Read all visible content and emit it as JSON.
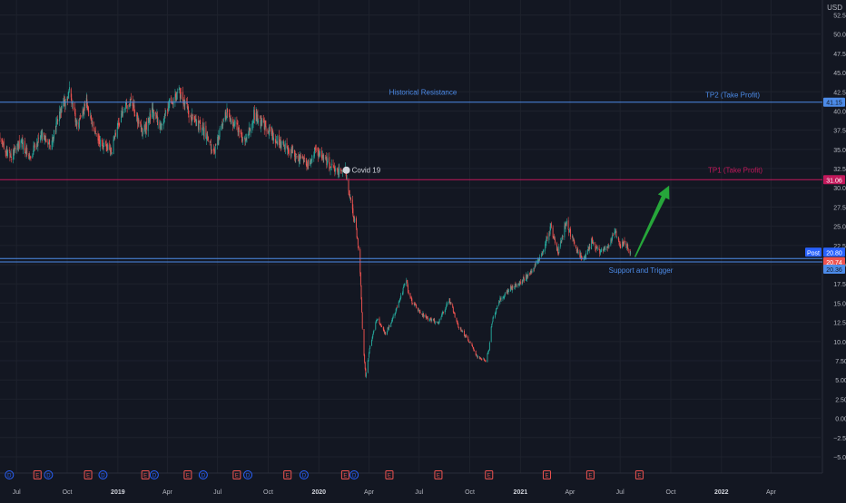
{
  "chart": {
    "currency": "USD",
    "colors": {
      "background": "#131722",
      "grid": "#1e222d",
      "up": "#26a69a",
      "down": "#ef5350",
      "text": "#b2b5be",
      "resistance_line": "#4c8be8",
      "tp1_line": "#c2185b",
      "arrow": "#26a63a",
      "axis_line": "#2a2e39"
    }
  },
  "chart_data": {
    "type": "candlestick",
    "title": "",
    "xlabel": "",
    "ylabel": "",
    "currency": "USD",
    "ylim": [
      -5,
      55
    ],
    "y_ticks": [
      -5,
      -2.5,
      0,
      2.5,
      5,
      7.5,
      10,
      12.5,
      15,
      17.5,
      20,
      22.5,
      25,
      27.5,
      30,
      32.5,
      35,
      37.5,
      40,
      42.5,
      45,
      47.5,
      50,
      52.5
    ],
    "y_tick_labels": [
      "−5.00",
      "−2.50",
      "0.00",
      "2.50",
      "5.00",
      "7.50",
      "10.00",
      "12.50",
      "15.00",
      "17.50",
      "20.00",
      "22.50",
      "25.00",
      "27.50",
      "30.00",
      "32.50",
      "35.00",
      "37.50",
      "40.00",
      "42.50",
      "45.00",
      "47.50",
      "50.00",
      "52.50"
    ],
    "x_range": [
      "2018-06-01",
      "2022-06-30"
    ],
    "x_ticks": [
      {
        "label": "Jul",
        "date": "2018-07-01"
      },
      {
        "label": "Oct",
        "date": "2018-10-01"
      },
      {
        "label": "2019",
        "date": "2019-01-01",
        "bold": true
      },
      {
        "label": "Apr",
        "date": "2019-04-01"
      },
      {
        "label": "Jul",
        "date": "2019-07-01"
      },
      {
        "label": "Oct",
        "date": "2019-10-01"
      },
      {
        "label": "2020",
        "date": "2020-01-01",
        "bold": true
      },
      {
        "label": "Apr",
        "date": "2020-04-01"
      },
      {
        "label": "Jul",
        "date": "2020-07-01"
      },
      {
        "label": "Oct",
        "date": "2020-10-01"
      },
      {
        "label": "2021",
        "date": "2021-01-01",
        "bold": true
      },
      {
        "label": "Apr",
        "date": "2021-04-01"
      },
      {
        "label": "Jul",
        "date": "2021-07-01"
      },
      {
        "label": "Oct",
        "date": "2021-10-01"
      },
      {
        "label": "2022",
        "date": "2022-01-01",
        "bold": true
      },
      {
        "label": "Apr",
        "date": "2022-04-01"
      }
    ],
    "price_path": [
      [
        "2018-06-01",
        36.5
      ],
      [
        "2018-06-20",
        34.0
      ],
      [
        "2018-07-10",
        36.0
      ],
      [
        "2018-07-25",
        34.0
      ],
      [
        "2018-08-15",
        37.0
      ],
      [
        "2018-09-01",
        35.5
      ],
      [
        "2018-09-20",
        40.0
      ],
      [
        "2018-10-05",
        42.5
      ],
      [
        "2018-10-20",
        38.0
      ],
      [
        "2018-11-05",
        41.0
      ],
      [
        "2018-11-25",
        36.0
      ],
      [
        "2018-12-20",
        35.0
      ],
      [
        "2019-01-10",
        40.0
      ],
      [
        "2019-01-25",
        41.5
      ],
      [
        "2019-02-15",
        37.0
      ],
      [
        "2019-03-05",
        40.0
      ],
      [
        "2019-03-20",
        38.0
      ],
      [
        "2019-04-05",
        41.0
      ],
      [
        "2019-04-25",
        42.5
      ],
      [
        "2019-05-10",
        39.5
      ],
      [
        "2019-06-05",
        37.5
      ],
      [
        "2019-06-25",
        34.5
      ],
      [
        "2019-07-15",
        40.0
      ],
      [
        "2019-08-05",
        38.0
      ],
      [
        "2019-08-20",
        36.0
      ],
      [
        "2019-09-05",
        39.5
      ],
      [
        "2019-09-25",
        38.0
      ],
      [
        "2019-10-20",
        36.0
      ],
      [
        "2019-11-15",
        34.5
      ],
      [
        "2019-12-10",
        33.0
      ],
      [
        "2019-12-25",
        35.0
      ],
      [
        "2020-01-15",
        33.5
      ],
      [
        "2020-02-05",
        32.0
      ],
      [
        "2020-02-18",
        32.5
      ],
      [
        "2020-02-28",
        28.0
      ],
      [
        "2020-03-08",
        25.0
      ],
      [
        "2020-03-15",
        21.0
      ],
      [
        "2020-03-21",
        10.0
      ],
      [
        "2020-03-26",
        5.5
      ],
      [
        "2020-04-02",
        9.0
      ],
      [
        "2020-04-15",
        13.0
      ],
      [
        "2020-05-01",
        11.0
      ],
      [
        "2020-05-20",
        14.0
      ],
      [
        "2020-06-08",
        18.0
      ],
      [
        "2020-06-12",
        16.0
      ],
      [
        "2020-06-25",
        14.5
      ],
      [
        "2020-07-15",
        13.0
      ],
      [
        "2020-08-05",
        12.5
      ],
      [
        "2020-08-25",
        15.5
      ],
      [
        "2020-09-10",
        12.0
      ],
      [
        "2020-09-30",
        10.0
      ],
      [
        "2020-10-15",
        8.0
      ],
      [
        "2020-10-30",
        7.5
      ],
      [
        "2020-11-05",
        9.0
      ],
      [
        "2020-11-10",
        12.5
      ],
      [
        "2020-11-25",
        15.5
      ],
      [
        "2020-12-15",
        17.0
      ],
      [
        "2021-01-05",
        18.0
      ],
      [
        "2021-01-20",
        19.0
      ],
      [
        "2021-02-05",
        21.0
      ],
      [
        "2021-02-15",
        22.5
      ],
      [
        "2021-02-25",
        25.0
      ],
      [
        "2021-03-10",
        21.5
      ],
      [
        "2021-03-25",
        25.5
      ],
      [
        "2021-04-10",
        22.5
      ],
      [
        "2021-04-25",
        20.5
      ],
      [
        "2021-05-10",
        23.0
      ],
      [
        "2021-05-25",
        21.5
      ],
      [
        "2021-06-10",
        22.5
      ],
      [
        "2021-06-20",
        24.5
      ],
      [
        "2021-06-30",
        22.5
      ],
      [
        "2021-07-10",
        23.0
      ],
      [
        "2021-07-20",
        21.5
      ]
    ],
    "horizontal_lines": [
      {
        "name": "historical-resistance",
        "value": 41.15,
        "label": "Historical Resistance",
        "price_label": "41.15",
        "color": "#4c8be8"
      },
      {
        "name": "tp2",
        "value": 41.15,
        "label": "TP2 (Take Profit)",
        "color": "#4c8be8"
      },
      {
        "name": "tp1",
        "value": 31.06,
        "label": "TP1 (Take Profit)",
        "price_label": "31.06",
        "color": "#c2185b"
      },
      {
        "name": "support-upper",
        "value": 20.8,
        "label": "",
        "color": "#4c8be8"
      },
      {
        "name": "support-lower",
        "value": 20.36,
        "label": "Support and Trigger",
        "price_label": "20.36",
        "color": "#4c8be8"
      }
    ],
    "price_tags": [
      {
        "text": "20.80",
        "value": 20.8,
        "bg": "#2962ff"
      },
      {
        "text": "20.74",
        "value": 20.74,
        "bg": "#ef5350"
      }
    ],
    "post_badge": "Post",
    "annotations": [
      {
        "name": "covid-19",
        "text": "Covid 19",
        "date": "2020-02-20",
        "value": 32.3
      }
    ],
    "arrow": {
      "from": [
        "2021-07-28",
        21.0
      ],
      "to": [
        "2021-09-28",
        30.3
      ]
    },
    "events": [
      {
        "type": "D",
        "date": "2018-06-18"
      },
      {
        "type": "E",
        "date": "2018-08-08"
      },
      {
        "type": "D",
        "date": "2018-08-28"
      },
      {
        "type": "E",
        "date": "2018-11-08"
      },
      {
        "type": "D",
        "date": "2018-12-05"
      },
      {
        "type": "E",
        "date": "2019-02-20"
      },
      {
        "type": "D",
        "date": "2019-03-08"
      },
      {
        "type": "E",
        "date": "2019-05-08"
      },
      {
        "type": "D",
        "date": "2019-06-05"
      },
      {
        "type": "E",
        "date": "2019-08-05"
      },
      {
        "type": "D",
        "date": "2019-08-25"
      },
      {
        "type": "E",
        "date": "2019-11-05"
      },
      {
        "type": "D",
        "date": "2019-12-05"
      },
      {
        "type": "E",
        "date": "2020-02-18"
      },
      {
        "type": "D",
        "date": "2020-03-05"
      },
      {
        "type": "E",
        "date": "2020-05-08"
      },
      {
        "type": "E",
        "date": "2020-08-05"
      },
      {
        "type": "E",
        "date": "2020-11-05"
      },
      {
        "type": "E",
        "date": "2021-02-18"
      },
      {
        "type": "E",
        "date": "2021-05-08"
      },
      {
        "type": "E",
        "date": "2021-08-05"
      }
    ]
  }
}
